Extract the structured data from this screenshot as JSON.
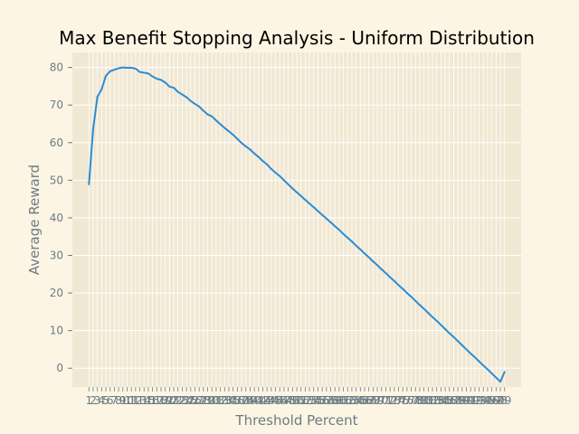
{
  "colors": {
    "figure_background": "#fdf5e3",
    "plot_background": "#f1e8d3",
    "grid": "#ffffff",
    "line": "#2a8cd4",
    "text": "#6b7b86",
    "title": "#000000"
  },
  "chart_data": {
    "type": "line",
    "title": "Max Benefit Stopping Analysis - Uniform Distribution",
    "xlabel": "Threshold Percent",
    "ylabel": "Average Reward",
    "xlim": [
      -2.9,
      102.9
    ],
    "ylim": [
      -5,
      84
    ],
    "grid": true,
    "legend": "none",
    "y_ticks": [
      0,
      10,
      20,
      30,
      40,
      50,
      60,
      70,
      80
    ],
    "x_ticks": [
      1,
      2,
      3,
      4,
      5,
      6,
      7,
      8,
      9,
      10,
      11,
      12,
      13,
      14,
      15,
      16,
      17,
      18,
      19,
      20,
      21,
      22,
      23,
      24,
      25,
      26,
      27,
      28,
      29,
      30,
      31,
      32,
      33,
      34,
      35,
      36,
      37,
      38,
      39,
      40,
      41,
      42,
      43,
      44,
      45,
      46,
      47,
      48,
      49,
      50,
      51,
      52,
      53,
      54,
      55,
      56,
      57,
      58,
      59,
      60,
      61,
      62,
      63,
      64,
      65,
      66,
      67,
      68,
      69,
      70,
      71,
      72,
      73,
      74,
      75,
      76,
      77,
      78,
      79,
      80,
      81,
      82,
      83,
      84,
      85,
      86,
      87,
      88,
      89,
      90,
      91,
      92,
      93,
      94,
      95,
      96,
      97,
      98,
      99
    ],
    "x": [
      1,
      2,
      3,
      4,
      5,
      6,
      7,
      8,
      9,
      10,
      11,
      12,
      13,
      14,
      15,
      16,
      17,
      18,
      19,
      20,
      21,
      22,
      23,
      24,
      25,
      26,
      27,
      28,
      29,
      30,
      31,
      32,
      33,
      34,
      35,
      36,
      37,
      38,
      39,
      40,
      41,
      42,
      43,
      44,
      45,
      46,
      47,
      48,
      49,
      50,
      51,
      52,
      53,
      54,
      55,
      56,
      57,
      58,
      59,
      60,
      61,
      62,
      63,
      64,
      65,
      66,
      67,
      68,
      69,
      70,
      71,
      72,
      73,
      74,
      75,
      76,
      77,
      78,
      79,
      80,
      81,
      82,
      83,
      84,
      85,
      86,
      87,
      88,
      89,
      90,
      91,
      92,
      93,
      94,
      95,
      96,
      97,
      98,
      99
    ],
    "series": [
      {
        "values": [
          48.9,
          63.6,
          72.2,
          74.2,
          77.8,
          79.0,
          79.4,
          79.8,
          80.0,
          79.9,
          79.9,
          79.7,
          78.8,
          78.6,
          78.4,
          77.6,
          77.0,
          76.7,
          76.0,
          74.9,
          74.6,
          73.5,
          72.8,
          72.1,
          71.1,
          70.3,
          69.6,
          68.5,
          67.5,
          67.0,
          65.9,
          64.9,
          63.9,
          63.0,
          62.1,
          61.0,
          59.9,
          59.0,
          58.2,
          57.1,
          56.2,
          55.1,
          54.2,
          53.0,
          52.0,
          51.1,
          50.0,
          48.9,
          47.8,
          46.8,
          45.8,
          44.8,
          43.8,
          42.8,
          41.8,
          40.8,
          39.8,
          38.8,
          37.8,
          36.8,
          35.7,
          34.7,
          33.7,
          32.6,
          31.6,
          30.5,
          29.5,
          28.4,
          27.4,
          26.3,
          25.3,
          24.2,
          23.2,
          22.1,
          21.1,
          20.0,
          19.0,
          17.9,
          16.8,
          15.8,
          14.7,
          13.6,
          12.6,
          11.5,
          10.4,
          9.3,
          8.3,
          7.2,
          6.1,
          5.0,
          3.9,
          2.9,
          1.8,
          0.7,
          -0.3,
          -1.4,
          -2.5,
          -3.6,
          -1.0
        ],
        "color": "#2a8cd4"
      }
    ]
  }
}
